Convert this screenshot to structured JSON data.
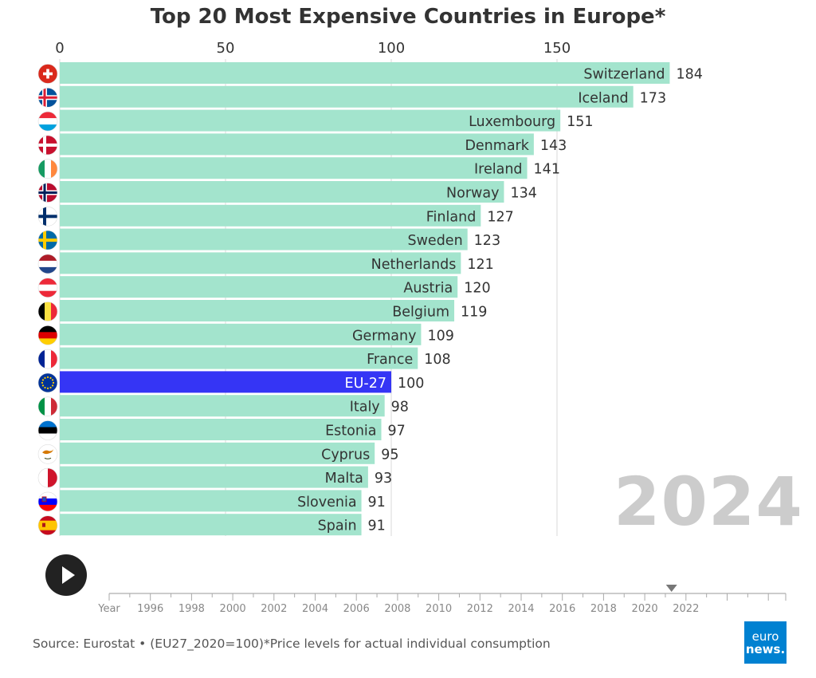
{
  "title": "Top 20 Most Expensive Countries in Europe*",
  "current_year": "2024",
  "source": "Source: Eurostat • (EU27_2020=100)*Price levels for actual individual consumption",
  "logo": {
    "line1": "euro",
    "line2": "news."
  },
  "timeline": {
    "labels": [
      "Year",
      "1996",
      "1998",
      "2000",
      "2002",
      "2004",
      "2006",
      "2008",
      "2010",
      "2012",
      "2014",
      "2016",
      "2018",
      "2020",
      "2022"
    ],
    "marker_year": 2021.3
  },
  "colors": {
    "bar": "#a3e4cd",
    "highlight": "#3535f5",
    "grid": "#d8d8d8"
  },
  "chart_data": {
    "type": "bar",
    "orientation": "horizontal",
    "xlim": [
      0,
      184
    ],
    "xticks": [
      0,
      50,
      100,
      150
    ],
    "grid": true,
    "highlight": "EU-27",
    "categories": [
      "Switzerland",
      "Iceland",
      "Luxembourg",
      "Denmark",
      "Ireland",
      "Norway",
      "Finland",
      "Sweden",
      "Netherlands",
      "Austria",
      "Belgium",
      "Germany",
      "France",
      "EU-27",
      "Italy",
      "Estonia",
      "Cyprus",
      "Malta",
      "Slovenia",
      "Spain"
    ],
    "values": [
      184,
      173,
      151,
      143,
      141,
      134,
      127,
      123,
      121,
      120,
      119,
      109,
      108,
      100,
      98,
      97,
      95,
      93,
      91,
      91
    ],
    "flags": [
      "switzerland-flag-icon",
      "iceland-flag-icon",
      "luxembourg-flag-icon",
      "denmark-flag-icon",
      "ireland-flag-icon",
      "norway-flag-icon",
      "finland-flag-icon",
      "sweden-flag-icon",
      "netherlands-flag-icon",
      "austria-flag-icon",
      "belgium-flag-icon",
      "germany-flag-icon",
      "france-flag-icon",
      "eu-flag-icon",
      "italy-flag-icon",
      "estonia-flag-icon",
      "cyprus-flag-icon",
      "malta-flag-icon",
      "slovenia-flag-icon",
      "spain-flag-icon"
    ]
  }
}
